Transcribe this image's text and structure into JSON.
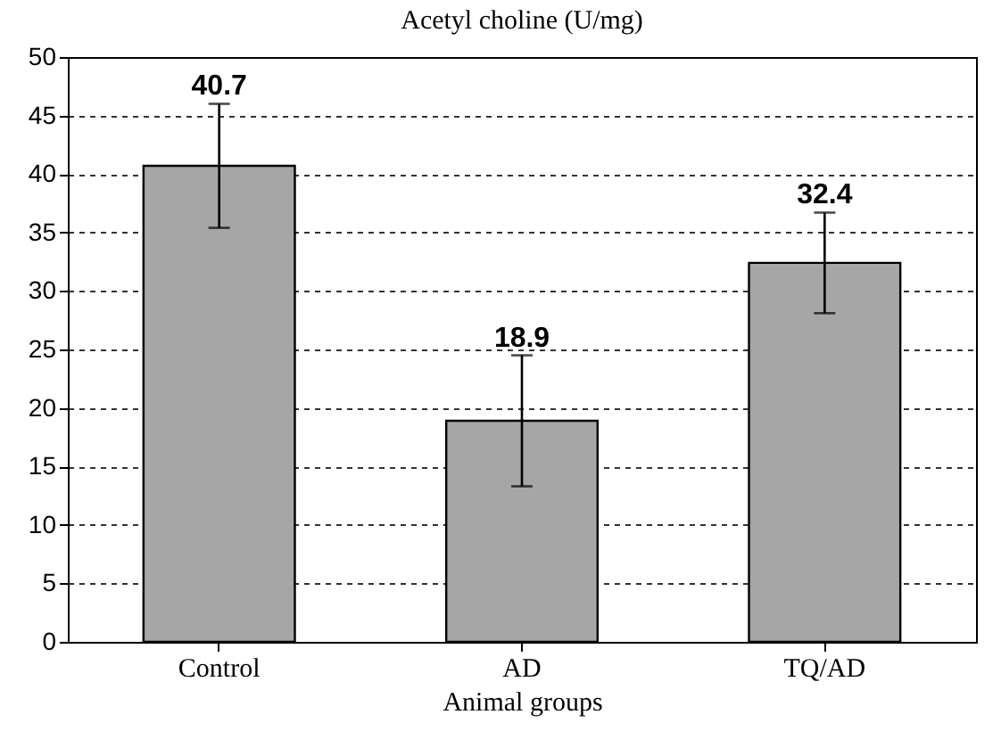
{
  "chart_data": {
    "type": "bar",
    "title": "Acetyl choline (U/mg)",
    "xlabel": "Animal groups",
    "categories": [
      "Control",
      "AD",
      "TQ/AD"
    ],
    "values": [
      40.7,
      18.9,
      32.4
    ],
    "errors": [
      5.3,
      5.6,
      4.3
    ],
    "color": "#a6a6a6",
    "ylim": [
      0,
      50
    ],
    "yticks": [
      0,
      5,
      10,
      15,
      20,
      25,
      30,
      35,
      40,
      45,
      50
    ],
    "grid": "y",
    "data_labels": true
  }
}
